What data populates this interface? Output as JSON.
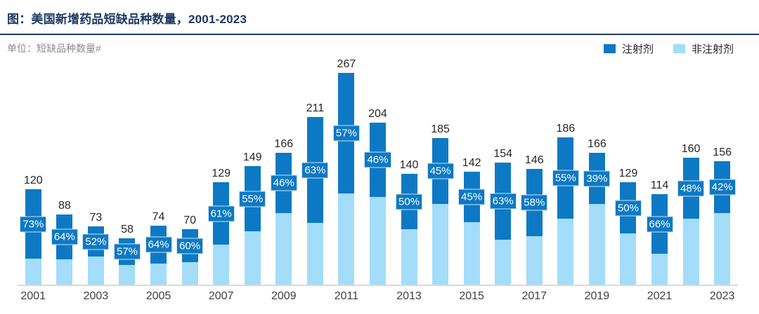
{
  "header": {
    "title": "图：美国新增药品短缺品种数量，2001-2023",
    "unit_label": "单位：短缺品种数量#"
  },
  "legend": [
    {
      "label": "注射剂",
      "color": "#0d79c4"
    },
    {
      "label": "非注射剂",
      "color": "#a3ddfa"
    }
  ],
  "colors": {
    "injectable": "#0d79c4",
    "non_injectable": "#a3ddfa",
    "title_navy": "#1f3864",
    "baseline_gray": "#d9d9d9",
    "badge_text": "#ffffff"
  },
  "chart_data": {
    "type": "bar",
    "stacked": true,
    "title": "美国新增药品短缺品种数量，2001-2023",
    "ylabel": "短缺品种数量#",
    "categories": [
      "2001",
      "2002",
      "2003",
      "2004",
      "2005",
      "2006",
      "2007",
      "2008",
      "2009",
      "2010",
      "2011",
      "2012",
      "2013",
      "2014",
      "2015",
      "2016",
      "2017",
      "2018",
      "2019",
      "2020",
      "2021",
      "2022",
      "2023"
    ],
    "totals": [
      120,
      88,
      73,
      58,
      74,
      70,
      129,
      149,
      166,
      211,
      267,
      204,
      140,
      185,
      142,
      154,
      146,
      186,
      166,
      129,
      114,
      160,
      156
    ],
    "series": [
      {
        "name": "注射剂",
        "color": "#0d79c4",
        "percent_of_total": [
          73,
          64,
          52,
          57,
          64,
          60,
          61,
          55,
          46,
          63,
          57,
          46,
          50,
          45,
          45,
          63,
          58,
          55,
          39,
          50,
          66,
          48,
          42
        ]
      },
      {
        "name": "非注射剂",
        "color": "#a3ddfa",
        "percent_of_total": [
          27,
          36,
          48,
          43,
          36,
          40,
          39,
          45,
          54,
          37,
          43,
          54,
          50,
          55,
          55,
          37,
          42,
          45,
          61,
          50,
          34,
          52,
          58
        ]
      }
    ],
    "data_labels": {
      "totals_above_bars": true,
      "pct_badges": [
        "73%",
        "64%",
        "52%",
        "57%",
        "64%",
        "60%",
        "61%",
        "55%",
        "46%",
        "63%",
        "57%",
        "46%",
        "50%",
        "45%",
        "45%",
        "63%",
        "58%",
        "55%",
        "39%",
        "50%",
        "66%",
        "48%",
        "42%"
      ]
    },
    "axis": {
      "x_ticks_shown": [
        "2001",
        "2003",
        "2005",
        "2007",
        "2009",
        "2011",
        "2013",
        "2015",
        "2017",
        "2019",
        "2021",
        "2023"
      ],
      "y_axis_visible": false,
      "grid": false
    },
    "ylim": [
      0,
      280
    ],
    "legend_position": "top-right"
  }
}
